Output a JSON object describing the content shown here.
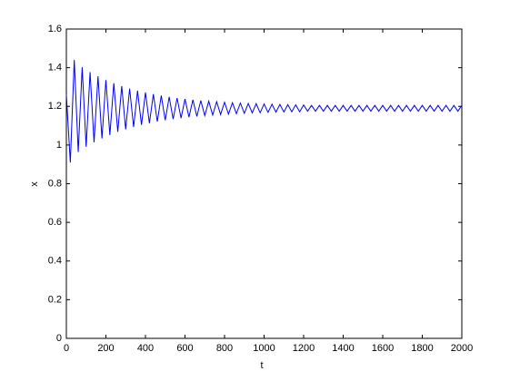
{
  "chart_data": {
    "type": "line",
    "x_label": "t",
    "y_label": "x",
    "x": [
      0,
      20,
      40,
      60,
      80,
      100,
      120,
      140,
      160,
      180,
      200,
      220,
      240,
      260,
      280,
      300,
      320,
      340,
      360,
      380,
      400,
      420,
      440,
      460,
      480,
      500,
      520,
      540,
      560,
      580,
      600,
      620,
      640,
      660,
      680,
      700,
      720,
      740,
      760,
      780,
      800,
      820,
      840,
      860,
      880,
      900,
      920,
      940,
      960,
      980,
      1000,
      1020,
      1040,
      1060,
      1080,
      1100,
      1120,
      1140,
      1160,
      1180,
      1200,
      1220,
      1240,
      1260,
      1280,
      1300,
      1320,
      1340,
      1360,
      1380,
      1400,
      1420,
      1440,
      1460,
      1480,
      1500,
      1520,
      1540,
      1560,
      1580,
      1600,
      1620,
      1640,
      1660,
      1680,
      1700,
      1720,
      1740,
      1760,
      1780,
      1800,
      1820,
      1840,
      1860,
      1880,
      1900,
      1920,
      1940,
      1960,
      1980,
      2000
    ],
    "series": [
      {
        "color": "#0000ff",
        "values": [
          1.26,
          0.91,
          1.44,
          0.964,
          1.402,
          0.991,
          1.377,
          1.014,
          1.356,
          1.034,
          1.336,
          1.052,
          1.32,
          1.068,
          1.305,
          1.081,
          1.292,
          1.093,
          1.281,
          1.104,
          1.272,
          1.113,
          1.263,
          1.121,
          1.256,
          1.128,
          1.249,
          1.134,
          1.243,
          1.139,
          1.238,
          1.144,
          1.234,
          1.148,
          1.23,
          1.152,
          1.227,
          1.155,
          1.224,
          1.158,
          1.221,
          1.16,
          1.219,
          1.162,
          1.217,
          1.164,
          1.215,
          1.166,
          1.214,
          1.167,
          1.212,
          1.169,
          1.211,
          1.17,
          1.21,
          1.171,
          1.209,
          1.172,
          1.208,
          1.172,
          1.207,
          1.175,
          1.205,
          1.175,
          1.205,
          1.175,
          1.205,
          1.175,
          1.205,
          1.175,
          1.205,
          1.175,
          1.205,
          1.175,
          1.205,
          1.175,
          1.205,
          1.175,
          1.205,
          1.175,
          1.205,
          1.175,
          1.205,
          1.175,
          1.205,
          1.175,
          1.205,
          1.175,
          1.205,
          1.175,
          1.205,
          1.175,
          1.205,
          1.175,
          1.205,
          1.175,
          1.205,
          1.175,
          1.205,
          1.175,
          1.205
        ]
      }
    ],
    "xlim": [
      0,
      2000
    ],
    "xticks": [
      0,
      200,
      400,
      600,
      800,
      1000,
      1200,
      1400,
      1600,
      1800,
      2000
    ],
    "ylim": [
      0,
      1.6
    ],
    "yticks": [
      0,
      0.2,
      0.4,
      0.6,
      0.8,
      1,
      1.2,
      1.4,
      1.6
    ],
    "grid": false
  }
}
